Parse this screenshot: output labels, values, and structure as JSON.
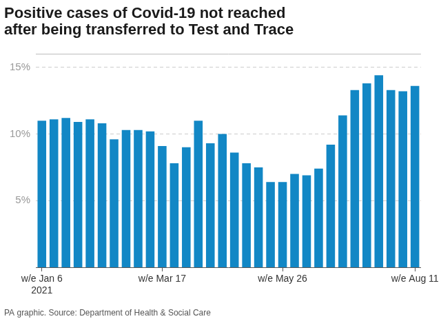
{
  "chart_data": {
    "type": "bar",
    "title": [
      "Positive cases of Covid-19 not reached",
      "after being transferred to Test and Trace"
    ],
    "source": "PA graphic. Source: Department of Health & Social Care",
    "categories": [
      [
        "w/e Jan 6",
        "2021"
      ],
      null,
      null,
      null,
      null,
      null,
      null,
      null,
      null,
      null,
      "w/e Mar 17",
      null,
      null,
      null,
      null,
      null,
      null,
      null,
      null,
      null,
      "w/e May 26",
      null,
      null,
      null,
      null,
      null,
      null,
      null,
      null,
      null,
      null,
      "w/e Aug 11"
    ],
    "values": [
      11.0,
      11.1,
      11.2,
      10.9,
      11.1,
      10.8,
      9.6,
      10.3,
      10.3,
      10.2,
      9.1,
      7.8,
      9.0,
      11.0,
      9.3,
      10.0,
      8.6,
      7.8,
      7.5,
      6.4,
      6.4,
      7.0,
      6.9,
      7.4,
      9.2,
      11.4,
      13.3,
      13.8,
      14.4,
      13.3,
      13.2,
      13.6
    ],
    "color": "#1287c5",
    "ylim": [
      0,
      16
    ],
    "yticks": [
      {
        "value": 5,
        "label": "5%"
      },
      {
        "value": 10,
        "label": "10%"
      },
      {
        "value": 15,
        "label": "15%"
      }
    ],
    "grid": true
  }
}
